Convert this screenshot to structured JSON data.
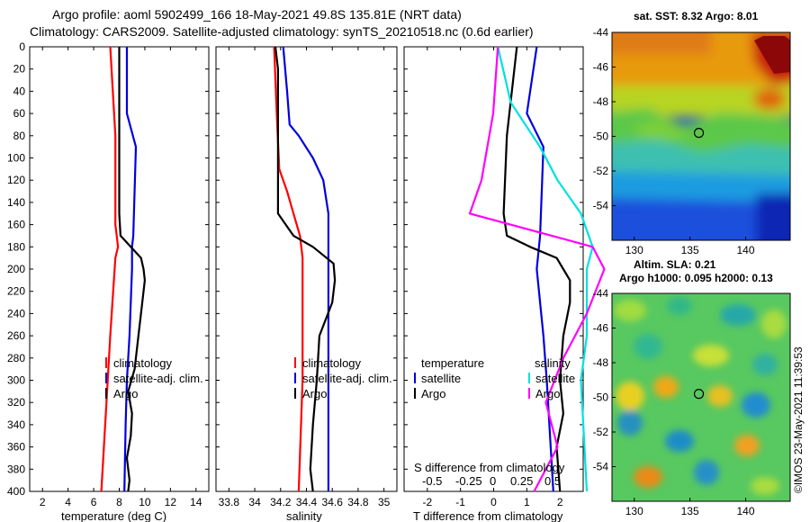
{
  "header": {
    "title_line1": "Argo profile: aoml 5902499_166 18-May-2021 49.8S 135.81E (NRT data)",
    "title_line2": "Climatology: CARS2009. Satellite-adjusted climatology: synTS_20210518.nc (0.6d earlier)"
  },
  "colors": {
    "climatology": "#ff0000",
    "satellite": "#0000dd",
    "argo": "#000000",
    "s_diff": "#ff00ff",
    "s_diff_sat": "#00e0e0"
  },
  "chart_data": [
    {
      "type": "line",
      "name": "temperature",
      "xlabel": "temperature (deg C)",
      "xlim": [
        1,
        15
      ],
      "xticks": [
        2,
        4,
        6,
        8,
        10,
        12,
        14
      ],
      "ylim": [
        0,
        400
      ],
      "yticks": [
        0,
        20,
        40,
        60,
        80,
        100,
        120,
        140,
        160,
        180,
        200,
        220,
        240,
        260,
        280,
        300,
        320,
        340,
        360,
        380,
        400
      ],
      "legend": [
        "climatology",
        "satellite-adj. clim.",
        "Argo"
      ],
      "series": [
        {
          "name": "climatology",
          "color": "#ff0000",
          "depth": [
            0,
            80,
            160,
            170,
            180,
            190,
            260,
            320,
            400
          ],
          "values": [
            7.3,
            7.7,
            7.7,
            7.8,
            7.9,
            7.7,
            7.3,
            7.0,
            6.6
          ]
        },
        {
          "name": "satellite-adj. clim.",
          "color": "#0000dd",
          "depth": [
            0,
            60,
            90,
            170,
            180,
            200,
            260,
            300,
            340,
            400
          ],
          "values": [
            8.6,
            8.6,
            9.3,
            9.1,
            9.0,
            9.0,
            8.8,
            8.6,
            8.5,
            8.4
          ]
        },
        {
          "name": "Argo",
          "color": "#000000",
          "depth": [
            0,
            10,
            80,
            150,
            170,
            180,
            190,
            200,
            210,
            230,
            260,
            290,
            310,
            330,
            350,
            370,
            390,
            400
          ],
          "values": [
            8.0,
            8.0,
            8.0,
            8.0,
            8.1,
            8.9,
            9.7,
            9.9,
            10.0,
            9.8,
            9.5,
            9.2,
            8.7,
            9.0,
            8.9,
            8.6,
            8.8,
            8.7
          ]
        }
      ]
    },
    {
      "type": "line",
      "name": "salinity",
      "xlabel": "salinity",
      "xlim": [
        33.7,
        35.1
      ],
      "xticks": [
        33.8,
        34,
        34.2,
        34.4,
        34.6,
        34.8,
        35
      ],
      "xtick_labels": [
        "33.8",
        "34",
        "34.2",
        "34.4",
        "34.6",
        "34.8",
        "35"
      ],
      "ylim": [
        0,
        400
      ],
      "legend": [
        "climatology",
        "satellite-adj. clim.",
        "Argo"
      ],
      "series": [
        {
          "name": "climatology",
          "color": "#ff0000",
          "depth": [
            0,
            60,
            110,
            130,
            150,
            170,
            190,
            220,
            300,
            400
          ],
          "values": [
            34.15,
            34.17,
            34.19,
            34.25,
            34.3,
            34.35,
            34.37,
            34.37,
            34.37,
            34.34
          ]
        },
        {
          "name": "satellite-adj. clim.",
          "color": "#0000dd",
          "depth": [
            0,
            40,
            70,
            80,
            100,
            120,
            150,
            400
          ],
          "values": [
            34.22,
            34.25,
            34.27,
            34.34,
            34.45,
            34.53,
            34.57,
            34.57
          ]
        },
        {
          "name": "Argo",
          "color": "#000000",
          "depth": [
            0,
            20,
            90,
            120,
            150,
            170,
            180,
            195,
            210,
            230,
            260,
            300,
            340,
            380,
            400
          ],
          "values": [
            34.16,
            34.18,
            34.18,
            34.18,
            34.18,
            34.3,
            34.45,
            34.61,
            34.62,
            34.6,
            34.5,
            34.48,
            34.45,
            34.43,
            34.45
          ]
        }
      ]
    },
    {
      "type": "line",
      "name": "difference",
      "xlabel": "T difference from climatology",
      "xlim": [
        -2.7,
        2.7
      ],
      "xticks": [
        -2,
        -1,
        0,
        1,
        2
      ],
      "top_axis_label": "S difference from climatology",
      "top_ticks": [
        "-0.5",
        "-0.25",
        "0",
        "0.25",
        "0.5"
      ],
      "ylim": [
        0,
        400
      ],
      "legend_left_title": "temperature",
      "legend_left": [
        "satellite",
        "Argo"
      ],
      "legend_right_title": "salinity",
      "legend_right": [
        "satellite",
        "Argo"
      ],
      "series": [
        {
          "name": "T satellite",
          "color": "#0000dd",
          "depth": [
            0,
            60,
            90,
            170,
            200,
            260,
            300,
            400
          ],
          "values": [
            1.3,
            1.0,
            1.5,
            1.4,
            1.3,
            1.5,
            1.6,
            1.8
          ]
        },
        {
          "name": "T Argo",
          "color": "#000000",
          "depth": [
            0,
            80,
            150,
            170,
            180,
            190,
            200,
            210,
            230,
            260,
            300,
            330,
            360,
            400
          ],
          "values": [
            0.7,
            0.4,
            0.3,
            0.4,
            1.1,
            1.9,
            2.1,
            2.3,
            2.3,
            2.1,
            2.0,
            2.1,
            1.9,
            2.0
          ]
        },
        {
          "name": "S satellite",
          "color": "#00e0e0",
          "depth": [
            0,
            50,
            90,
            120,
            150,
            180,
            200,
            260,
            300,
            400
          ],
          "values": [
            0.04,
            0.15,
            0.4,
            0.55,
            0.75,
            0.85,
            0.8,
            0.8,
            0.75,
            0.8
          ]
        },
        {
          "name": "S Argo",
          "color": "#ff00ff",
          "depth": [
            0,
            60,
            120,
            150,
            170,
            180,
            200,
            240,
            280,
            320,
            360,
            400
          ],
          "values": [
            0.04,
            0.0,
            -0.1,
            -0.2,
            0.5,
            0.85,
            0.95,
            0.8,
            0.6,
            0.45,
            0.55,
            0.35
          ]
        }
      ]
    },
    {
      "type": "heatmap",
      "name": "sst_map",
      "title": "sat. SST: 8.32 Argo: 8.01",
      "xlim": [
        128,
        144
      ],
      "xticks": [
        130,
        135,
        140
      ],
      "ylim": [
        -56,
        -44
      ],
      "yticks": [
        -44,
        -46,
        -48,
        -50,
        -52,
        -54
      ],
      "marker": {
        "lon": 135.8,
        "lat": -49.8
      }
    },
    {
      "type": "heatmap",
      "name": "sla_map",
      "title_line1": "Altim. SLA: 0.21",
      "title_line2": "Argo h1000: 0.095 h2000: 0.13",
      "xlim": [
        128,
        144
      ],
      "xticks": [
        130,
        135,
        140
      ],
      "ylim": [
        -56,
        -44
      ],
      "yticks": [
        -44,
        -46,
        -48,
        -50,
        -52,
        -54
      ],
      "marker": {
        "lon": 135.8,
        "lat": -49.8
      }
    }
  ],
  "footer": {
    "credit": "©IMOS 23-May-2021 11:39:53"
  }
}
